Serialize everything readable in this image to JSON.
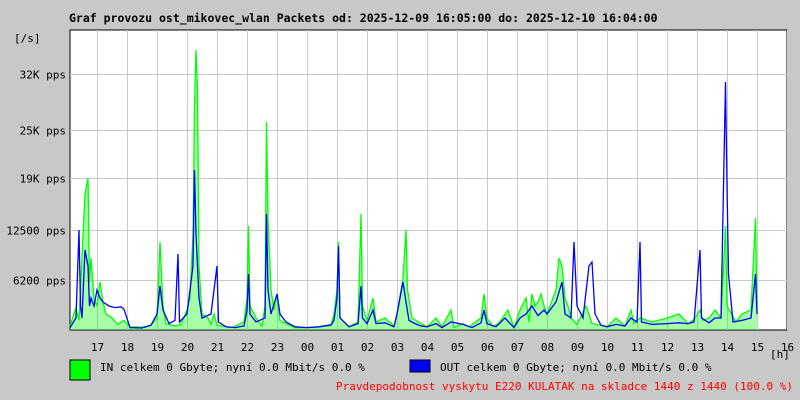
{
  "chart_data": {
    "type": "area",
    "title": "Graf provozu ost_mikovec_wlan Packets od: 2025-12-09 16:05:00 do: 2025-12-10 16:04:00",
    "ylabel": "[/s]",
    "xlabel": "[h]",
    "ylim": [
      0,
      37500
    ],
    "grid": true,
    "y_ticks": [
      {
        "value": 6200,
        "label": "6200 pps"
      },
      {
        "value": 12500,
        "label": "12500 pps"
      },
      {
        "value": 19000,
        "label": "19K pps"
      },
      {
        "value": 25000,
        "label": "25K pps"
      },
      {
        "value": 32000,
        "label": "32K pps"
      }
    ],
    "x_ticks": [
      "17",
      "18",
      "19",
      "20",
      "21",
      "22",
      "23",
      "00",
      "01",
      "02",
      "03",
      "04",
      "05",
      "06",
      "07",
      "08",
      "09",
      "10",
      "11",
      "12",
      "13",
      "14",
      "15",
      "16"
    ],
    "series": [
      {
        "name": "IN",
        "color": "#00ff00",
        "points": [
          [
            16.1,
            500
          ],
          [
            16.3,
            2800
          ],
          [
            16.4,
            1200
          ],
          [
            16.5,
            9000
          ],
          [
            16.6,
            17000
          ],
          [
            16.7,
            19000
          ],
          [
            16.75,
            6000
          ],
          [
            16.8,
            9000
          ],
          [
            16.9,
            4000
          ],
          [
            17.0,
            3000
          ],
          [
            17.1,
            6000
          ],
          [
            17.2,
            3500
          ],
          [
            17.3,
            2000
          ],
          [
            17.5,
            1500
          ],
          [
            17.7,
            700
          ],
          [
            17.9,
            1200
          ],
          [
            18.1,
            400
          ],
          [
            18.5,
            350
          ],
          [
            18.8,
            600
          ],
          [
            19.0,
            1500
          ],
          [
            19.1,
            11000
          ],
          [
            19.2,
            3000
          ],
          [
            19.3,
            800
          ],
          [
            19.6,
            500
          ],
          [
            19.8,
            700
          ],
          [
            20.0,
            2500
          ],
          [
            20.1,
            4000
          ],
          [
            20.2,
            12000
          ],
          [
            20.25,
            28000
          ],
          [
            20.3,
            35000
          ],
          [
            20.35,
            30000
          ],
          [
            20.4,
            8000
          ],
          [
            20.5,
            2000
          ],
          [
            20.7,
            1500
          ],
          [
            20.8,
            700
          ],
          [
            20.9,
            2000
          ],
          [
            21.0,
            600
          ],
          [
            21.5,
            300
          ],
          [
            21.9,
            1000
          ],
          [
            22.0,
            4000
          ],
          [
            22.05,
            13000
          ],
          [
            22.1,
            3000
          ],
          [
            22.3,
            1500
          ],
          [
            22.5,
            500
          ],
          [
            22.6,
            3000
          ],
          [
            22.65,
            26000
          ],
          [
            22.7,
            14000
          ],
          [
            22.8,
            5000
          ],
          [
            22.9,
            2500
          ],
          [
            23.0,
            4500
          ],
          [
            23.1,
            1200
          ],
          [
            23.4,
            600
          ],
          [
            23.6,
            300
          ],
          [
            24.0,
            300
          ],
          [
            24.4,
            400
          ],
          [
            24.8,
            700
          ],
          [
            24.9,
            2000
          ],
          [
            25.0,
            5000
          ],
          [
            25.05,
            11000
          ],
          [
            25.1,
            1500
          ],
          [
            25.4,
            400
          ],
          [
            25.7,
            1000
          ],
          [
            25.8,
            14500
          ],
          [
            25.85,
            3000
          ],
          [
            26.0,
            1200
          ],
          [
            26.2,
            4000
          ],
          [
            26.3,
            1000
          ],
          [
            26.6,
            1500
          ],
          [
            26.9,
            500
          ],
          [
            27.0,
            2000
          ],
          [
            27.2,
            6500
          ],
          [
            27.3,
            12500
          ],
          [
            27.35,
            5000
          ],
          [
            27.5,
            1500
          ],
          [
            27.8,
            800
          ],
          [
            28.0,
            400
          ],
          [
            28.3,
            1500
          ],
          [
            28.5,
            400
          ],
          [
            28.8,
            2500
          ],
          [
            28.9,
            300
          ],
          [
            29.2,
            800
          ],
          [
            29.4,
            400
          ],
          [
            29.8,
            1500
          ],
          [
            29.9,
            4500
          ],
          [
            30.0,
            1500
          ],
          [
            30.2,
            400
          ],
          [
            30.4,
            900
          ],
          [
            30.7,
            2500
          ],
          [
            30.9,
            300
          ],
          [
            31.1,
            2500
          ],
          [
            31.3,
            4000
          ],
          [
            31.4,
            1000
          ],
          [
            31.5,
            4500
          ],
          [
            31.6,
            3000
          ],
          [
            31.7,
            3500
          ],
          [
            31.8,
            4500
          ],
          [
            31.9,
            3000
          ],
          [
            32.0,
            2000
          ],
          [
            32.3,
            5000
          ],
          [
            32.4,
            9000
          ],
          [
            32.5,
            8000
          ],
          [
            32.6,
            4000
          ],
          [
            32.7,
            3000
          ],
          [
            32.8,
            1500
          ],
          [
            33.0,
            700
          ],
          [
            33.3,
            3000
          ],
          [
            33.5,
            800
          ],
          [
            33.8,
            600
          ],
          [
            34.0,
            400
          ],
          [
            34.3,
            1500
          ],
          [
            34.6,
            500
          ],
          [
            34.8,
            2500
          ],
          [
            34.9,
            800
          ],
          [
            35.1,
            1500
          ],
          [
            35.5,
            1000
          ],
          [
            36.0,
            1500
          ],
          [
            36.4,
            2000
          ],
          [
            36.7,
            800
          ],
          [
            36.9,
            1300
          ],
          [
            37.1,
            2500
          ],
          [
            37.2,
            1200
          ],
          [
            37.4,
            1500
          ],
          [
            37.6,
            2500
          ],
          [
            37.8,
            1500
          ],
          [
            37.95,
            13000
          ],
          [
            38.0,
            3000
          ],
          [
            38.3,
            1000
          ],
          [
            38.5,
            2000
          ],
          [
            38.8,
            2500
          ],
          [
            38.95,
            14000
          ],
          [
            39.0,
            3000
          ]
        ]
      },
      {
        "name": "OUT",
        "color": "#0000ff",
        "points": [
          [
            16.1,
            300
          ],
          [
            16.3,
            1500
          ],
          [
            16.4,
            12500
          ],
          [
            16.45,
            3000
          ],
          [
            16.5,
            1500
          ],
          [
            16.6,
            10000
          ],
          [
            16.7,
            8000
          ],
          [
            16.75,
            3000
          ],
          [
            16.8,
            4000
          ],
          [
            16.9,
            3000
          ],
          [
            17.0,
            5000
          ],
          [
            17.1,
            4000
          ],
          [
            17.2,
            3500
          ],
          [
            17.4,
            3000
          ],
          [
            17.6,
            2800
          ],
          [
            17.8,
            2900
          ],
          [
            17.9,
            2600
          ],
          [
            18.1,
            300
          ],
          [
            18.5,
            250
          ],
          [
            18.8,
            600
          ],
          [
            19.0,
            2000
          ],
          [
            19.1,
            5500
          ],
          [
            19.2,
            2500
          ],
          [
            19.4,
            800
          ],
          [
            19.6,
            1200
          ],
          [
            19.7,
            9500
          ],
          [
            19.75,
            1000
          ],
          [
            20.0,
            2000
          ],
          [
            20.2,
            8000
          ],
          [
            20.25,
            20000
          ],
          [
            20.3,
            12000
          ],
          [
            20.4,
            4000
          ],
          [
            20.5,
            1500
          ],
          [
            20.8,
            2000
          ],
          [
            21.0,
            8000
          ],
          [
            21.05,
            1000
          ],
          [
            21.3,
            400
          ],
          [
            21.6,
            300
          ],
          [
            21.9,
            500
          ],
          [
            22.0,
            2500
          ],
          [
            22.05,
            7000
          ],
          [
            22.1,
            2000
          ],
          [
            22.3,
            1000
          ],
          [
            22.6,
            1500
          ],
          [
            22.65,
            14500
          ],
          [
            22.7,
            5000
          ],
          [
            22.8,
            2000
          ],
          [
            23.0,
            4500
          ],
          [
            23.1,
            2000
          ],
          [
            23.3,
            1000
          ],
          [
            23.6,
            400
          ],
          [
            24.0,
            300
          ],
          [
            24.4,
            400
          ],
          [
            24.8,
            600
          ],
          [
            24.9,
            1200
          ],
          [
            25.0,
            4000
          ],
          [
            25.05,
            10500
          ],
          [
            25.1,
            1500
          ],
          [
            25.4,
            400
          ],
          [
            25.7,
            800
          ],
          [
            25.8,
            5500
          ],
          [
            25.85,
            1500
          ],
          [
            26.0,
            800
          ],
          [
            26.2,
            2500
          ],
          [
            26.3,
            800
          ],
          [
            26.6,
            900
          ],
          [
            26.9,
            400
          ],
          [
            27.0,
            2000
          ],
          [
            27.2,
            6000
          ],
          [
            27.3,
            3500
          ],
          [
            27.4,
            1200
          ],
          [
            27.6,
            800
          ],
          [
            27.8,
            500
          ],
          [
            28.0,
            400
          ],
          [
            28.3,
            800
          ],
          [
            28.5,
            300
          ],
          [
            28.8,
            1000
          ],
          [
            29.2,
            700
          ],
          [
            29.5,
            300
          ],
          [
            29.8,
            900
          ],
          [
            29.9,
            2500
          ],
          [
            30.0,
            800
          ],
          [
            30.3,
            400
          ],
          [
            30.6,
            1500
          ],
          [
            30.9,
            300
          ],
          [
            31.1,
            1500
          ],
          [
            31.3,
            2000
          ],
          [
            31.5,
            3000
          ],
          [
            31.7,
            1800
          ],
          [
            31.9,
            2500
          ],
          [
            32.0,
            2000
          ],
          [
            32.3,
            3500
          ],
          [
            32.5,
            6000
          ],
          [
            32.6,
            2000
          ],
          [
            32.8,
            1500
          ],
          [
            32.9,
            11000
          ],
          [
            33.0,
            3000
          ],
          [
            33.2,
            1500
          ],
          [
            33.4,
            8000
          ],
          [
            33.5,
            8500
          ],
          [
            33.6,
            2000
          ],
          [
            33.8,
            600
          ],
          [
            34.0,
            400
          ],
          [
            34.3,
            700
          ],
          [
            34.6,
            500
          ],
          [
            34.8,
            1500
          ],
          [
            35.0,
            1000
          ],
          [
            35.1,
            11000
          ],
          [
            35.15,
            1000
          ],
          [
            35.5,
            700
          ],
          [
            36.0,
            800
          ],
          [
            36.4,
            900
          ],
          [
            36.7,
            800
          ],
          [
            36.9,
            1000
          ],
          [
            37.1,
            10000
          ],
          [
            37.15,
            1500
          ],
          [
            37.4,
            900
          ],
          [
            37.6,
            1500
          ],
          [
            37.8,
            1500
          ],
          [
            37.95,
            31000
          ],
          [
            38.0,
            18000
          ],
          [
            38.05,
            7000
          ],
          [
            38.2,
            1000
          ],
          [
            38.5,
            1200
          ],
          [
            38.8,
            1500
          ],
          [
            38.95,
            7000
          ],
          [
            39.0,
            2000
          ]
        ]
      }
    ]
  },
  "legend": {
    "in_color": "#00ff00",
    "out_color": "#0000ff",
    "in_text": "IN celkem 0 Gbyte; nyní   0.0 Mbit/s 0.0 %",
    "out_text": "OUT celkem 0 Gbyte; nyní   0.0 Mbit/s 0.0 %"
  },
  "warning_text": "Pravdepodobnost vyskytu E220 KULATAK na skladce 1440 z 1440 (100.0 %)",
  "colors": {
    "background": "#c8c8c8",
    "plot_background": "#ffffff",
    "grid": "#c8c8c8",
    "warning": "#ff0000"
  }
}
